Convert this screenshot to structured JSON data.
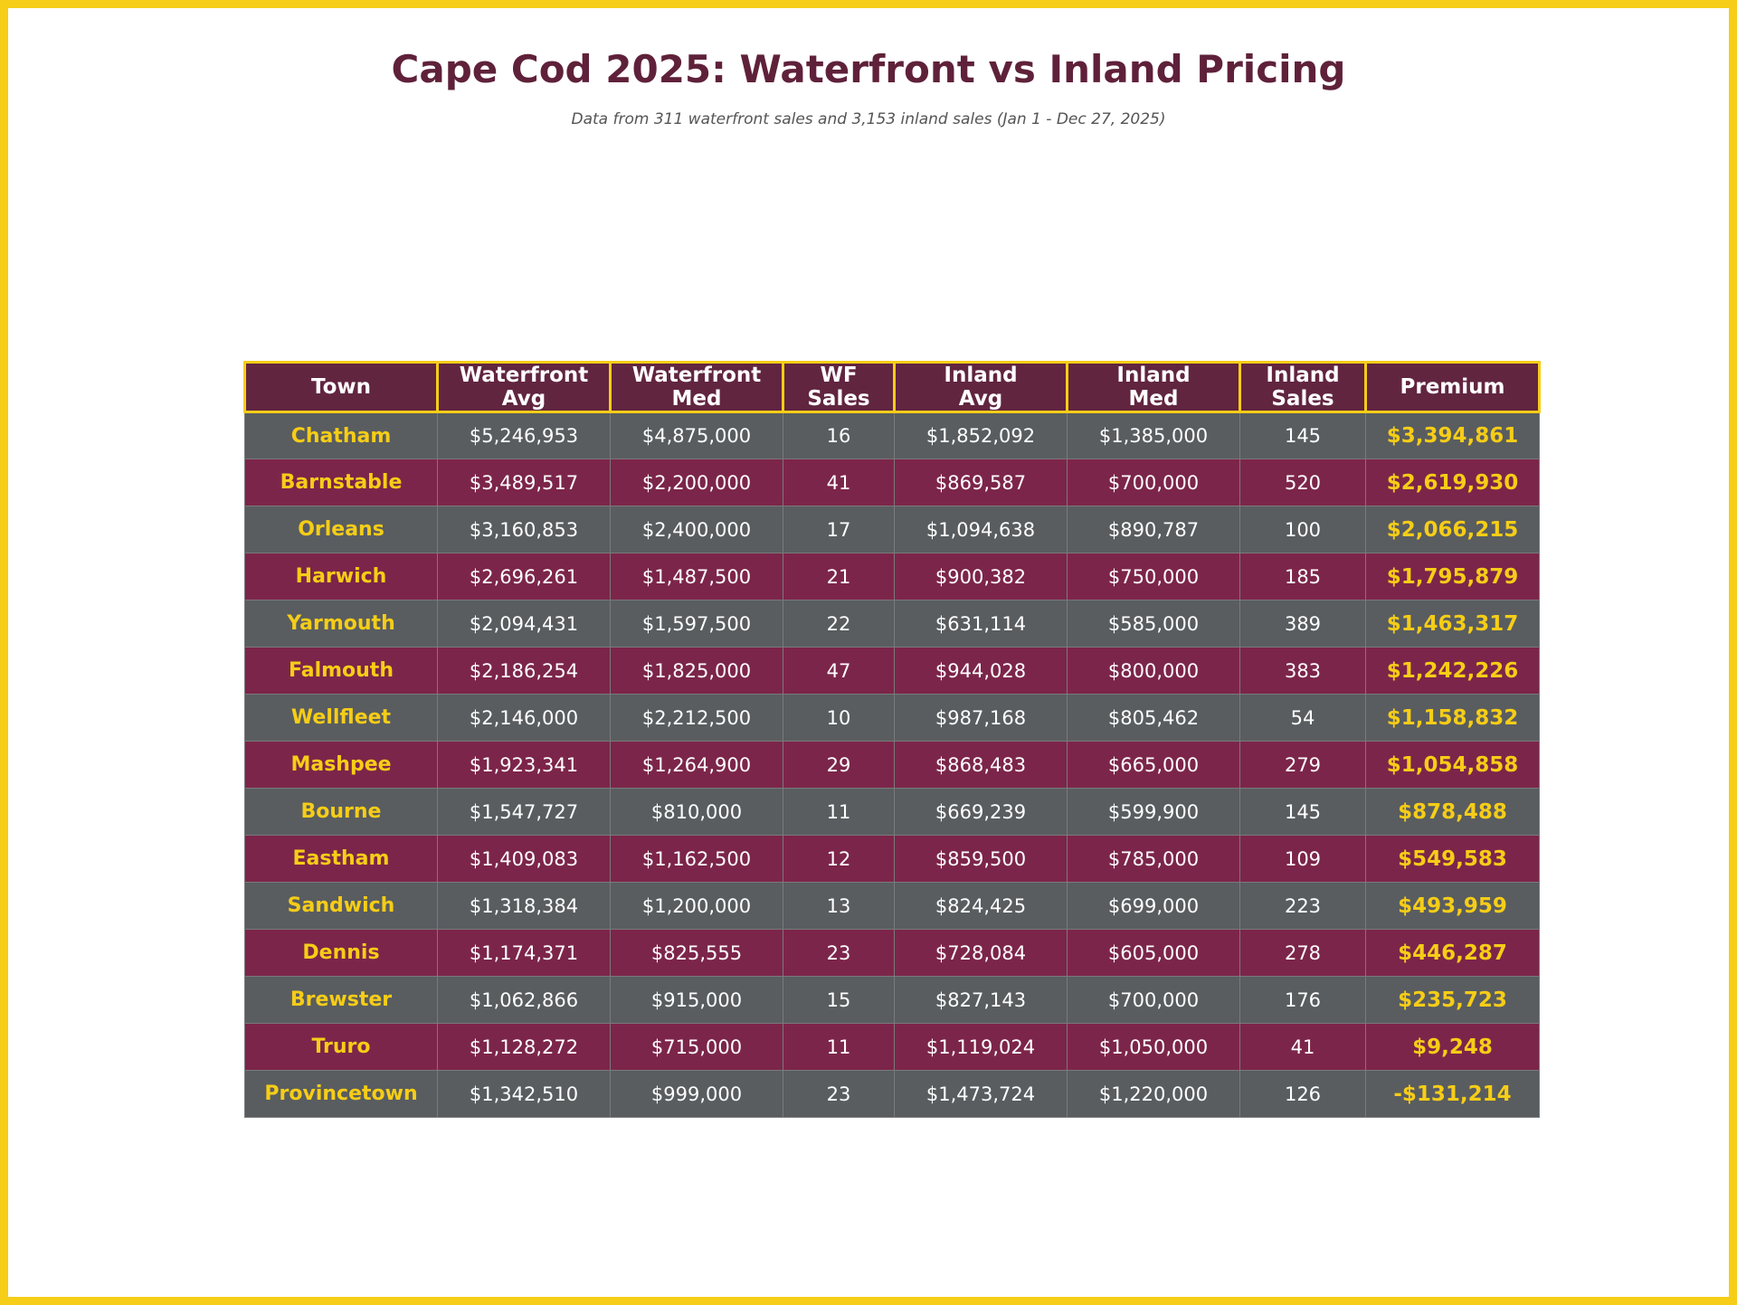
{
  "title": "Cape Cod 2025: Waterfront vs Inland Pricing",
  "subtitle": "Data from 311 waterfront sales and 3,153 inland sales (Jan 1 - Dec 27, 2025)",
  "colors": {
    "border": "#f6cd17",
    "title": "#5f213a",
    "header_bg": "#612540",
    "row_gray": "#595d60",
    "row_maroon": "#7c254a",
    "highlight_text": "#f6cd17"
  },
  "chart_data": {
    "type": "table",
    "title": "Cape Cod 2025: Waterfront vs Inland Pricing",
    "subtitle": "Data from 311 waterfront sales and 3,153 inland sales (Jan 1 - Dec 27, 2025)",
    "columns": [
      [
        "Town"
      ],
      [
        "Waterfront",
        "Avg"
      ],
      [
        "Waterfront",
        "Med"
      ],
      [
        "WF",
        "Sales"
      ],
      [
        "Inland",
        "Avg"
      ],
      [
        "Inland",
        "Med"
      ],
      [
        "Inland",
        "Sales"
      ],
      [
        "Premium"
      ]
    ],
    "rows": [
      [
        "Chatham",
        "$5,246,953",
        "$4,875,000",
        "16",
        "$1,852,092",
        "$1,385,000",
        "145",
        "$3,394,861"
      ],
      [
        "Barnstable",
        "$3,489,517",
        "$2,200,000",
        "41",
        "$869,587",
        "$700,000",
        "520",
        "$2,619,930"
      ],
      [
        "Orleans",
        "$3,160,853",
        "$2,400,000",
        "17",
        "$1,094,638",
        "$890,787",
        "100",
        "$2,066,215"
      ],
      [
        "Harwich",
        "$2,696,261",
        "$1,487,500",
        "21",
        "$900,382",
        "$750,000",
        "185",
        "$1,795,879"
      ],
      [
        "Yarmouth",
        "$2,094,431",
        "$1,597,500",
        "22",
        "$631,114",
        "$585,000",
        "389",
        "$1,463,317"
      ],
      [
        "Falmouth",
        "$2,186,254",
        "$1,825,000",
        "47",
        "$944,028",
        "$800,000",
        "383",
        "$1,242,226"
      ],
      [
        "Wellfleet",
        "$2,146,000",
        "$2,212,500",
        "10",
        "$987,168",
        "$805,462",
        "54",
        "$1,158,832"
      ],
      [
        "Mashpee",
        "$1,923,341",
        "$1,264,900",
        "29",
        "$868,483",
        "$665,000",
        "279",
        "$1,054,858"
      ],
      [
        "Bourne",
        "$1,547,727",
        "$810,000",
        "11",
        "$669,239",
        "$599,900",
        "145",
        "$878,488"
      ],
      [
        "Eastham",
        "$1,409,083",
        "$1,162,500",
        "12",
        "$859,500",
        "$785,000",
        "109",
        "$549,583"
      ],
      [
        "Sandwich",
        "$1,318,384",
        "$1,200,000",
        "13",
        "$824,425",
        "$699,000",
        "223",
        "$493,959"
      ],
      [
        "Dennis",
        "$1,174,371",
        "$825,555",
        "23",
        "$728,084",
        "$605,000",
        "278",
        "$446,287"
      ],
      [
        "Brewster",
        "$1,062,866",
        "$915,000",
        "15",
        "$827,143",
        "$700,000",
        "176",
        "$235,723"
      ],
      [
        "Truro",
        "$1,128,272",
        "$715,000",
        "11",
        "$1,119,024",
        "$1,050,000",
        "41",
        "$9,248"
      ],
      [
        "Provincetown",
        "$1,342,510",
        "$999,000",
        "23",
        "$1,473,724",
        "$1,220,000",
        "126",
        "-$131,214"
      ]
    ]
  }
}
